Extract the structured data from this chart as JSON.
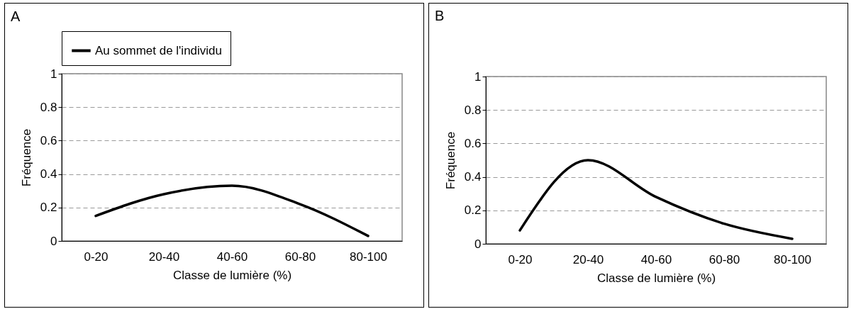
{
  "chart_data": [
    {
      "type": "line",
      "title": "A",
      "xlabel": "Classe de lumière (%)",
      "ylabel": "Fréquence",
      "categories": [
        "0-20",
        "20-40",
        "40-60",
        "60-80",
        "80-100"
      ],
      "series": [
        {
          "name": "Au sommet de l'individu",
          "color": "#000000",
          "values": [
            0.15,
            0.28,
            0.33,
            0.22,
            0.03
          ]
        }
      ],
      "ylim": [
        0,
        1
      ],
      "yticks": [
        0,
        0.2,
        0.4,
        0.6,
        0.8,
        1
      ],
      "grid": "y",
      "legend": "top",
      "marker": "none",
      "line_style": "solid"
    },
    {
      "type": "line",
      "title": "B",
      "xlabel": "Classe de lumière (%)",
      "ylabel": "Fréquence",
      "categories": [
        "0-20",
        "20-40",
        "40-60",
        "60-80",
        "80-100"
      ],
      "series": [
        {
          "color": "#000000",
          "values": [
            0.08,
            0.5,
            0.28,
            0.12,
            0.03
          ]
        }
      ],
      "ylim": [
        0,
        1
      ],
      "yticks": [
        0,
        0.2,
        0.4,
        0.6,
        0.8,
        1
      ],
      "grid": "y",
      "marker": "none",
      "line_style": "solid"
    }
  ]
}
